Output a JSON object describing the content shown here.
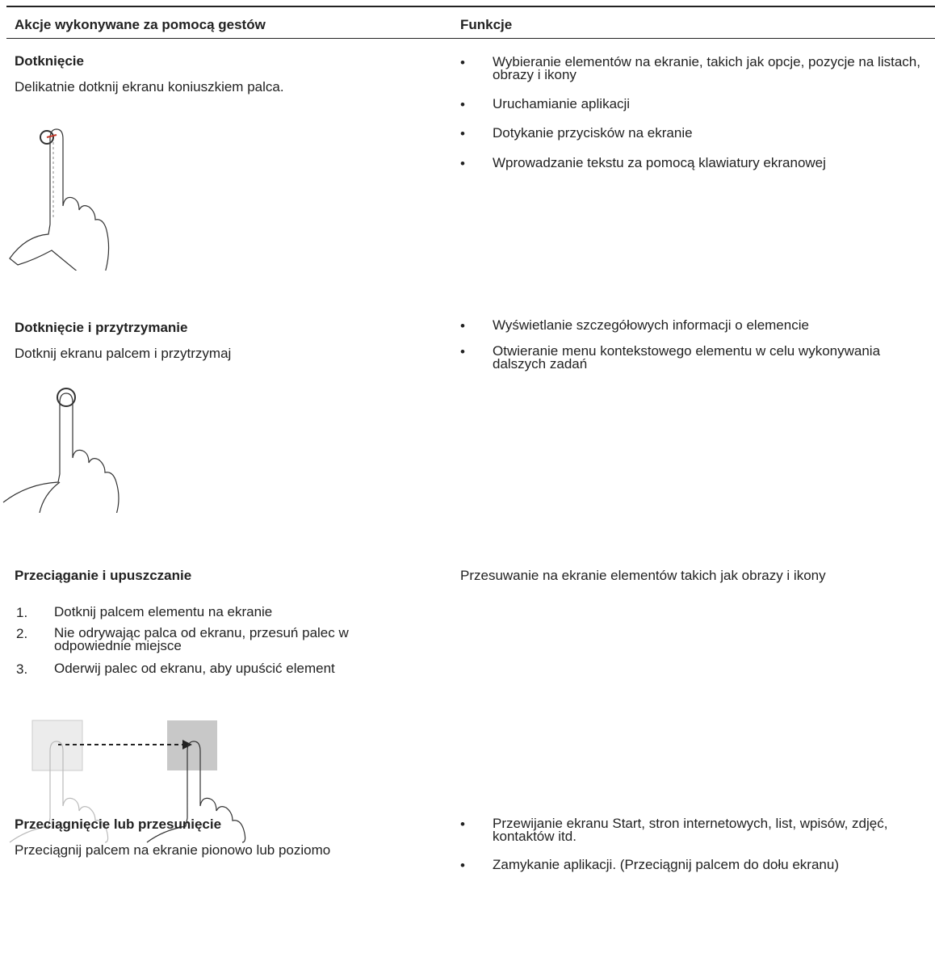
{
  "table": {
    "headers": [
      "Akcje wykonywane za pomocą gestów",
      "Funkcje"
    ],
    "rows": [
      {
        "gesture": "Dotknięcie",
        "description": "Delikatnie dotknij ekranu koniuszkiem palca.",
        "functions": [
          "Wybieranie elementów na ekranie, takich jak opcje, pozycje na listach, obrazy i ikony",
          "Uruchamianie aplikacji",
          "Dotykanie przycisków na ekranie",
          "Wprowadzanie tekstu za pomocą klawiatury ekranowej"
        ]
      },
      {
        "gesture": "Dotknięcie i przytrzymanie",
        "description": "Dotknij ekranu palcem i przytrzymaj",
        "functions": [
          "Wyświetlanie szczegółowych informacji o elemencie",
          "Otwieranie menu kontekstowego elementu w celu wykonywania dalszych zadań"
        ]
      },
      {
        "gesture": "Przeciąganie i upuszczanie",
        "steps": [
          {
            "number": "1.",
            "text": "Dotknij palcem elementu na ekranie"
          },
          {
            "number": "2.",
            "text": "Nie odrywając palca od ekranu, przesuń palec w odpowiednie miejsce"
          },
          {
            "number": "3.",
            "text": "Oderwij palec od ekranu, aby upuścić element"
          }
        ],
        "function_text": "Przesuwanie na ekranie elementów takich jak obrazy i ikony"
      },
      {
        "gesture": "Przeciągnięcie lub przesunięcie",
        "description": "Przeciągnij palcem na ekranie pionowo lub poziomo",
        "functions": [
          "Przewijanie ekranu Start, stron internetowych, list, wpisów, zdjęć, kontaktów itd.",
          "Zamykanie aplikacji. (Przeciągnij palcem do dołu ekranu)"
        ]
      }
    ]
  }
}
